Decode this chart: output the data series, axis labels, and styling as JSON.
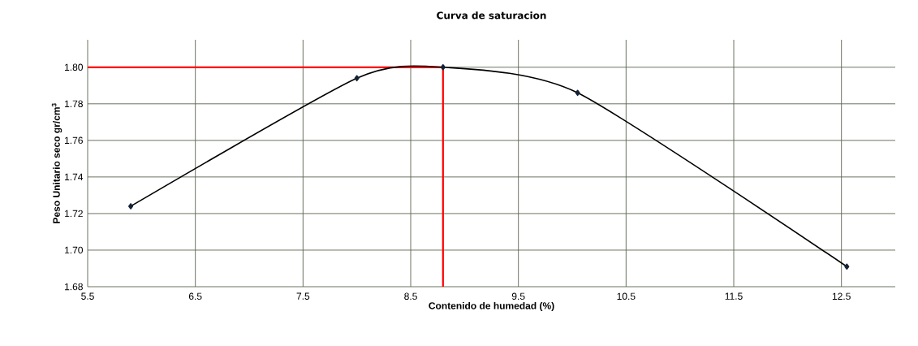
{
  "chart_data": {
    "type": "line",
    "title": "Curva de saturacion",
    "xlabel": "Contenido de humedad (%)",
    "ylabel": "Peso Unitario seco gr/cm$^{3}$",
    "x": [
      5.9,
      8.0,
      8.8,
      10.05,
      12.55
    ],
    "series": [
      {
        "color": "#000000",
        "values": [
          1.724,
          1.794,
          1.8,
          1.786,
          1.691
        ]
      }
    ],
    "marker": "diamond",
    "line_style": "solid",
    "grid": true,
    "xlim": [
      5.5,
      13.0
    ],
    "ylim": [
      1.68,
      1.815
    ],
    "xticks": [
      5.5,
      6.5,
      7.5,
      8.5,
      9.5,
      10.5,
      11.5,
      12.5
    ],
    "yticks": [
      {
        "value": 1.68,
        "label": "1.68"
      },
      {
        "value": 1.7,
        "label": "1.70"
      },
      {
        "value": 1.72,
        "label": "1.72"
      },
      {
        "value": 1.74,
        "label": "1.74"
      },
      {
        "value": 1.76,
        "label": "1.76"
      },
      {
        "value": 1.78,
        "label": "1.78"
      },
      {
        "value": 1.8,
        "label": "1.80"
      }
    ],
    "ref_lines": [
      {
        "axis": "y",
        "value": 1.8,
        "color": "#ff0000"
      },
      {
        "axis": "x",
        "value": 8.8,
        "color": "#ff0000"
      }
    ]
  }
}
